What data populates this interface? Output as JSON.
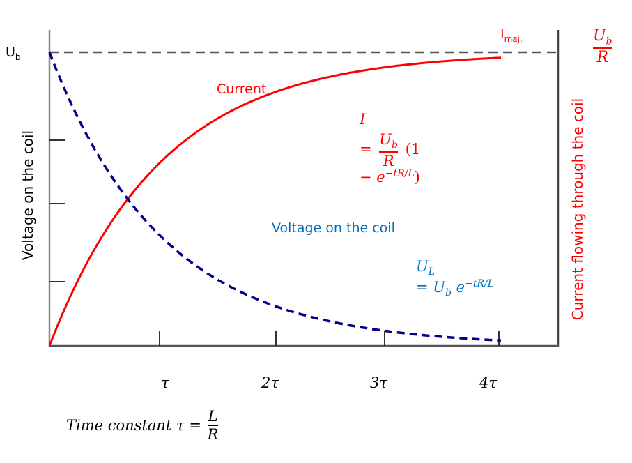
{
  "chart_data": {
    "type": "line",
    "title": "",
    "xlabel": "Time constant τ = L/R",
    "ylabel_left": "Voltage on the coil",
    "ylabel_right": "Current flowing through the coil",
    "x_ticks": [
      "τ",
      "2τ",
      "3τ",
      "4τ"
    ],
    "x_tick_values": [
      1,
      2,
      3,
      4
    ],
    "xlim": [
      0,
      4.4
    ],
    "ylim": [
      0,
      1
    ],
    "grid": false,
    "reference_line": {
      "label_left": "U_b",
      "label_right": "I_maj.",
      "right_value": "U_b / R",
      "y": 1,
      "style": "dashed",
      "color": "#555555"
    },
    "series": [
      {
        "name": "Current",
        "style": "solid",
        "color": "#ff0000",
        "formula": "I = U_b/R (1 − e^(−tR/L))",
        "x": [
          0,
          0.5,
          1,
          1.5,
          2,
          2.5,
          3,
          3.5,
          4
        ],
        "values": [
          0,
          0.39,
          0.56,
          0.68,
          0.76,
          0.83,
          0.88,
          0.92,
          0.95
        ]
      },
      {
        "name": "Voltage on the coil",
        "style": "dashed",
        "color": "#00008b",
        "formula": "U_L = U_b e^(−tR/L)",
        "x": [
          0,
          0.5,
          1,
          1.5,
          2,
          2.5,
          3,
          3.5,
          4
        ],
        "values": [
          1,
          0.61,
          0.39,
          0.26,
          0.19,
          0.13,
          0.09,
          0.05,
          0.02
        ]
      }
    ]
  },
  "labels": {
    "ub_left": "U",
    "ub_left_sub": "b",
    "imaj": "I",
    "imaj_sub": "maj.",
    "right_frac_num": "U",
    "right_frac_num_sub": "b",
    "right_frac_den": "R",
    "ylabel_left": "Voltage on the coil",
    "ylabel_right": "Current flowing through the coil",
    "current_label": "Current",
    "voltage_label": "Voltage on the coil",
    "current_formula": {
      "line1": "I",
      "eq": "=",
      "num": "U",
      "num_sub": "b",
      "den": "R",
      "paren": "(1",
      "line3_minus": "−",
      "e": "e",
      "exp": "−tR/L",
      "close": ")"
    },
    "voltage_formula": {
      "line1": "U",
      "line1_sub": "L",
      "eq": "=",
      "u": "U",
      "u_sub": "b",
      "e": "e",
      "exp": "−tR/L"
    },
    "ticks": [
      "τ",
      "2τ",
      "3τ",
      "4τ"
    ],
    "time_constant": {
      "text": "Time constant τ =",
      "num": "L",
      "den": "R"
    }
  },
  "colors": {
    "current": "#ff0000",
    "voltage_curve": "#00008b",
    "voltage_text": "#0070c0",
    "axis": "#7f7f7f",
    "reference": "#555555"
  }
}
